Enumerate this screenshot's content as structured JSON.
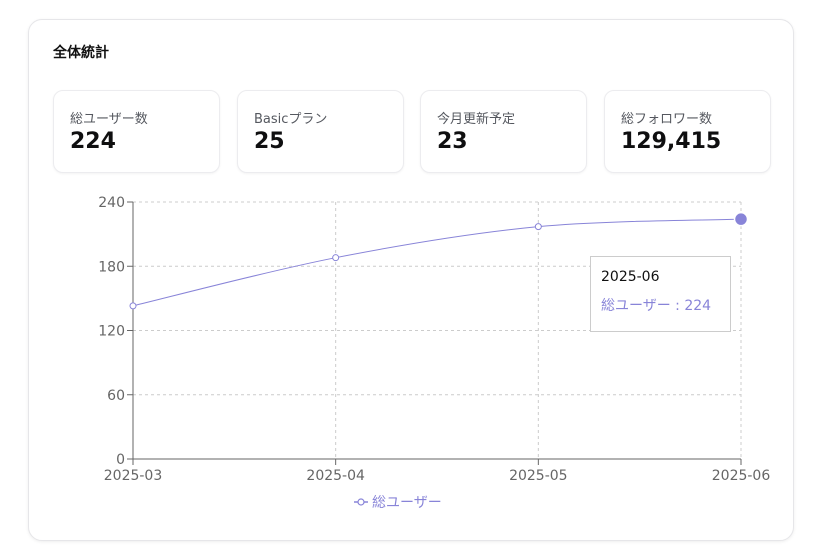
{
  "card": {
    "title": "全体統計"
  },
  "stats": [
    {
      "label": "総ユーザー数",
      "value": "224"
    },
    {
      "label": "Basicプラン",
      "value": "25"
    },
    {
      "label": "今月更新予定",
      "value": "23"
    },
    {
      "label": "総フォロワー数",
      "value": "129,415"
    }
  ],
  "chart_data": {
    "type": "line",
    "x": [
      "2025-03",
      "2025-04",
      "2025-05",
      "2025-06"
    ],
    "series": [
      {
        "name": "総ユーザー",
        "values": [
          143,
          188,
          217,
          224
        ]
      }
    ],
    "yticks": [
      0,
      60,
      120,
      180,
      240
    ],
    "ylim": [
      0,
      240
    ],
    "grid": true,
    "legend": "bottom",
    "color": "#8884d8",
    "active_index": 3
  },
  "tooltip": {
    "title": "2025-06",
    "value": "総ユーザー : 224"
  }
}
